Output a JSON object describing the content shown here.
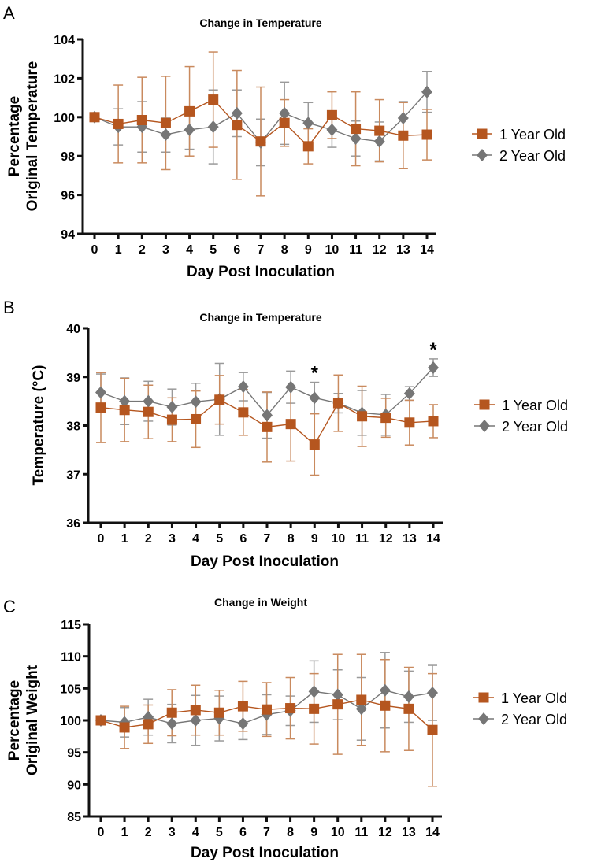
{
  "chart_data": [
    {
      "panel": "A",
      "type": "line",
      "title": "Change in Temperature",
      "xlabel": "Day Post Inoculation",
      "ylabel": [
        "Percentage",
        "Original Temperature"
      ],
      "ylim": [
        94,
        104
      ],
      "yticks": [
        94,
        96,
        98,
        100,
        102,
        104
      ],
      "x": [
        0,
        1,
        2,
        3,
        4,
        5,
        6,
        7,
        8,
        9,
        10,
        11,
        12,
        13,
        14
      ],
      "series": [
        {
          "name": "1 Year Old",
          "marker": "square",
          "color": "#B5561F",
          "errColor": "#C98A5E",
          "values": [
            100,
            99.65,
            99.85,
            99.7,
            100.3,
            100.9,
            99.6,
            98.75,
            99.7,
            98.5,
            100.1,
            99.4,
            99.3,
            99.05,
            99.1
          ],
          "err": [
            0.1,
            2.0,
            2.2,
            2.4,
            2.3,
            2.45,
            2.8,
            2.8,
            1.2,
            0.9,
            1.2,
            1.9,
            1.6,
            1.7,
            1.3
          ]
        },
        {
          "name": "2 Year Old",
          "marker": "diamond",
          "color": "#767676",
          "errColor": "#9A9A9A",
          "values": [
            100,
            99.5,
            99.5,
            99.1,
            99.35,
            99.5,
            100.2,
            98.7,
            100.2,
            99.7,
            99.35,
            98.9,
            98.75,
            99.95,
            101.3
          ],
          "err": [
            0.1,
            0.93,
            1.3,
            0.9,
            1.0,
            1.9,
            1.2,
            1.2,
            1.6,
            1.05,
            0.9,
            0.9,
            1.0,
            0.85,
            1.05
          ]
        }
      ],
      "annotations": [],
      "legend": "right"
    },
    {
      "panel": "B",
      "type": "line",
      "title": "Change in Temperature",
      "xlabel": "Day Post Inoculation",
      "ylabel": [
        "Temperature (°C)"
      ],
      "ylim": [
        36,
        40
      ],
      "yticks": [
        36,
        37,
        38,
        39,
        40
      ],
      "x": [
        0,
        1,
        2,
        3,
        4,
        5,
        6,
        7,
        8,
        9,
        10,
        11,
        12,
        13,
        14
      ],
      "series": [
        {
          "name": "1 Year Old",
          "marker": "square",
          "color": "#B5561F",
          "errColor": "#C98A5E",
          "values": [
            38.37,
            38.32,
            38.28,
            38.12,
            38.13,
            38.53,
            38.27,
            37.97,
            38.03,
            37.61,
            38.46,
            38.19,
            38.16,
            38.06,
            38.09
          ],
          "err": [
            0.72,
            0.65,
            0.55,
            0.45,
            0.58,
            0.5,
            0.47,
            0.72,
            0.76,
            0.63,
            0.58,
            0.62,
            0.4,
            0.46,
            0.34
          ]
        },
        {
          "name": "2 Year Old",
          "marker": "diamond",
          "color": "#767676",
          "errColor": "#9A9A9A",
          "values": [
            38.68,
            38.5,
            38.5,
            38.38,
            38.49,
            38.54,
            38.8,
            38.21,
            38.79,
            38.57,
            38.46,
            38.26,
            38.22,
            38.66,
            39.19
          ],
          "err": [
            0.38,
            0.48,
            0.41,
            0.37,
            0.38,
            0.74,
            0.29,
            0.47,
            0.33,
            0.32,
            0.2,
            0.46,
            0.42,
            0.14,
            0.18
          ]
        }
      ],
      "annotations": [
        {
          "x": 9,
          "text": "*"
        },
        {
          "x": 14,
          "text": "*"
        }
      ],
      "legend": "right"
    },
    {
      "panel": "C",
      "type": "line",
      "title": "Change in Weight",
      "xlabel": "Day Post Inoculation",
      "ylabel": [
        "Percentage",
        "Original Weight"
      ],
      "ylim": [
        85,
        115
      ],
      "yticks": [
        85,
        90,
        95,
        100,
        105,
        110,
        115
      ],
      "x": [
        0,
        1,
        2,
        3,
        4,
        5,
        6,
        7,
        8,
        9,
        10,
        11,
        12,
        13,
        14
      ],
      "series": [
        {
          "name": "1 Year Old",
          "marker": "square",
          "color": "#B5561F",
          "errColor": "#C98A5E",
          "values": [
            100,
            98.9,
            99.4,
            101.2,
            101.6,
            101.2,
            102.2,
            101.7,
            101.9,
            101.8,
            102.5,
            103.2,
            102.3,
            101.8,
            98.5
          ],
          "err": [
            0.3,
            3.3,
            3.0,
            3.6,
            3.9,
            3.5,
            3.9,
            4.2,
            4.8,
            5.5,
            7.8,
            7.1,
            7.2,
            6.5,
            8.8
          ]
        },
        {
          "name": "2 Year Old",
          "marker": "diamond",
          "color": "#767676",
          "errColor": "#9A9A9A",
          "values": [
            100,
            99.7,
            100.5,
            99.5,
            100.0,
            100.3,
            99.5,
            100.9,
            101.5,
            104.5,
            104.0,
            101.8,
            104.7,
            103.7,
            104.3
          ],
          "err": [
            0.3,
            2.3,
            2.8,
            3.0,
            3.9,
            3.5,
            2.5,
            3.1,
            2.3,
            4.8,
            3.9,
            4.9,
            5.9,
            4.0,
            4.3
          ]
        }
      ],
      "annotations": [],
      "legend": "right"
    }
  ]
}
